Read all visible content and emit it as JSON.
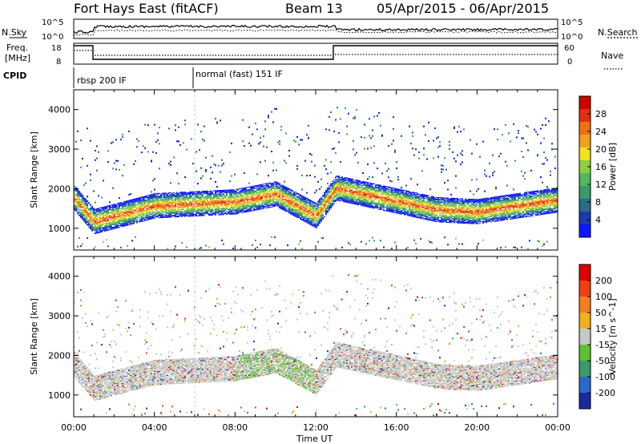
{
  "header": {
    "site": "Fort Hays East (fitACF)",
    "beam": "Beam 13",
    "dates": "05/Apr/2015 - 06/Apr/2015"
  },
  "top_panels": {
    "nsky_label": "N.Sky",
    "nsky_ticks": [
      "10^5",
      "10^0"
    ],
    "nsearch_label": "N.Search",
    "nsearch_ticks": [
      "10^5",
      "10^0"
    ],
    "freq_label_line1": "Freq.",
    "freq_label_line2": "[MHz]",
    "freq_ticks": [
      "18",
      "8"
    ],
    "nave_label": "Nave",
    "nave_ticks": [
      "60",
      "0"
    ],
    "cpid_label": "CPID",
    "modes": [
      {
        "name": "rbsp 200 IF",
        "start_hour": 0
      },
      {
        "name": "normal (fast) 151 IF",
        "start_hour": 6
      }
    ]
  },
  "chart_data": [
    {
      "type": "heatmap",
      "panel": "power",
      "xlabel": "",
      "ylabel": "Slant Range [km]",
      "xlim": [
        0,
        24
      ],
      "ylim": [
        450,
        4500
      ],
      "yticks": [
        "4000",
        "3000",
        "2000",
        "1000"
      ],
      "colorbar": {
        "label": "Power [dB]",
        "ticks": [
          "28",
          "24",
          "20",
          "16",
          "12",
          "8",
          "4"
        ],
        "colors": [
          "#0a1aff",
          "#1a3ab0",
          "#2a6a8a",
          "#3a9a6a",
          "#4fb860",
          "#8ad040",
          "#f0e020",
          "#f0a020",
          "#f07010",
          "#e03010",
          "#d00000"
        ]
      },
      "main_band_center_km": [
        [
          0,
          1750
        ],
        [
          1,
          1150
        ],
        [
          4,
          1550
        ],
        [
          8,
          1650
        ],
        [
          10,
          1850
        ],
        [
          12,
          1300
        ],
        [
          13,
          2000
        ],
        [
          18,
          1450
        ],
        [
          20,
          1400
        ],
        [
          24,
          1700
        ]
      ]
    },
    {
      "type": "heatmap",
      "panel": "velocity",
      "xlabel": "Time UT",
      "ylabel": "Slant Range [km]",
      "xlim": [
        0,
        24
      ],
      "ylim": [
        450,
        4500
      ],
      "xticks": [
        "00:00",
        "04:00",
        "08:00",
        "12:00",
        "16:00",
        "20:00",
        "00:00"
      ],
      "yticks": [
        "4000",
        "3000",
        "2000",
        "1000"
      ],
      "colorbar": {
        "label": "Velocity [m s^-1]",
        "ticks": [
          "200",
          "100",
          "50",
          "15",
          "-15",
          "-50",
          "-100",
          "-200"
        ],
        "colors": [
          "#1a2aa0",
          "#2a6ad0",
          "#3a9a6a",
          "#60c030",
          "#c8c8c8",
          "#f0b020",
          "#f08020",
          "#f04010",
          "#e00000"
        ]
      }
    }
  ]
}
